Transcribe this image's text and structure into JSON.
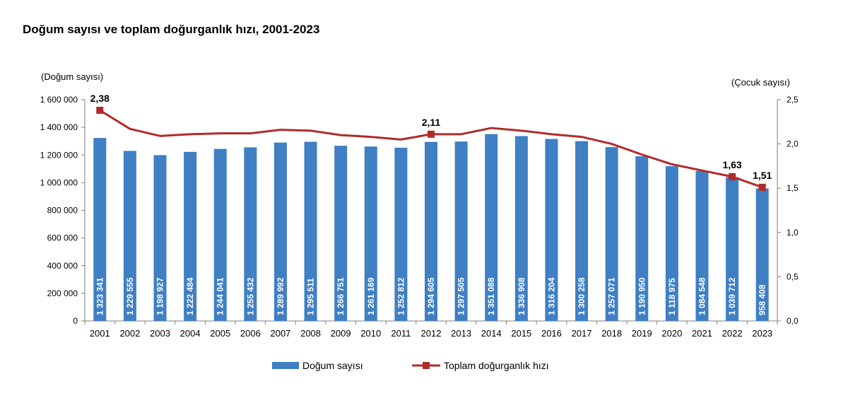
{
  "chart_data": {
    "type": "bar+line",
    "title": "Doğum sayısı ve toplam doğurganlık hızı, 2001-2023",
    "y_left_label": "(Doğum sayısı)",
    "y_right_label": "(Çocuk sayısı)",
    "y_left_lim": [
      0,
      1600000
    ],
    "y_right_lim": [
      0,
      2.5
    ],
    "y_left_ticks": [
      "0",
      "200 000",
      "400 000",
      "600 000",
      "800 000",
      "1 000 000",
      "1 200 000",
      "1 400 000",
      "1 600 000"
    ],
    "y_right_ticks": [
      "0,0",
      "0,5",
      "1,0",
      "1,5",
      "2,0",
      "2,5"
    ],
    "grid": false,
    "legend_position": "bottom",
    "categories": [
      "2001",
      "2002",
      "2003",
      "2004",
      "2005",
      "2006",
      "2007",
      "2008",
      "2009",
      "2010",
      "2011",
      "2012",
      "2013",
      "2014",
      "2015",
      "2016",
      "2017",
      "2018",
      "2019",
      "2020",
      "2021",
      "2022",
      "2023"
    ],
    "series": [
      {
        "name": "Doğum sayısı",
        "type": "bar",
        "axis": "left",
        "color": "#3f7fc4",
        "values": [
          1323341,
          1229555,
          1198927,
          1222484,
          1244041,
          1255432,
          1289992,
          1295511,
          1266751,
          1261169,
          1252812,
          1294605,
          1297505,
          1351088,
          1336908,
          1316204,
          1300258,
          1257071,
          1190950,
          1118975,
          1084548,
          1039712,
          958408
        ],
        "labels": [
          "1 323 341",
          "1 229 555",
          "1 198 927",
          "1 222 484",
          "1 244 041",
          "1 255 432",
          "1 289 992",
          "1 295 511",
          "1 266 751",
          "1 261 169",
          "1 252 812",
          "1 294 605",
          "1 297 505",
          "1 351 088",
          "1 336 908",
          "1 316 204",
          "1 300 258",
          "1 257 071",
          "1 190 950",
          "1 118 975",
          "1 084 548",
          "1 039 712",
          "958 408"
        ]
      },
      {
        "name": "Toplam doğurganlık hızı",
        "type": "line",
        "axis": "right",
        "color": "#b22a2a",
        "values": [
          2.38,
          2.17,
          2.09,
          2.11,
          2.12,
          2.12,
          2.16,
          2.15,
          2.1,
          2.08,
          2.05,
          2.11,
          2.11,
          2.18,
          2.15,
          2.11,
          2.08,
          2.0,
          1.88,
          1.77,
          1.7,
          1.63,
          1.51
        ],
        "marker_indices": [
          0,
          11,
          21,
          22
        ],
        "marker_labels": [
          "2,38",
          "2,11",
          "1,63",
          "1,51"
        ]
      }
    ]
  }
}
